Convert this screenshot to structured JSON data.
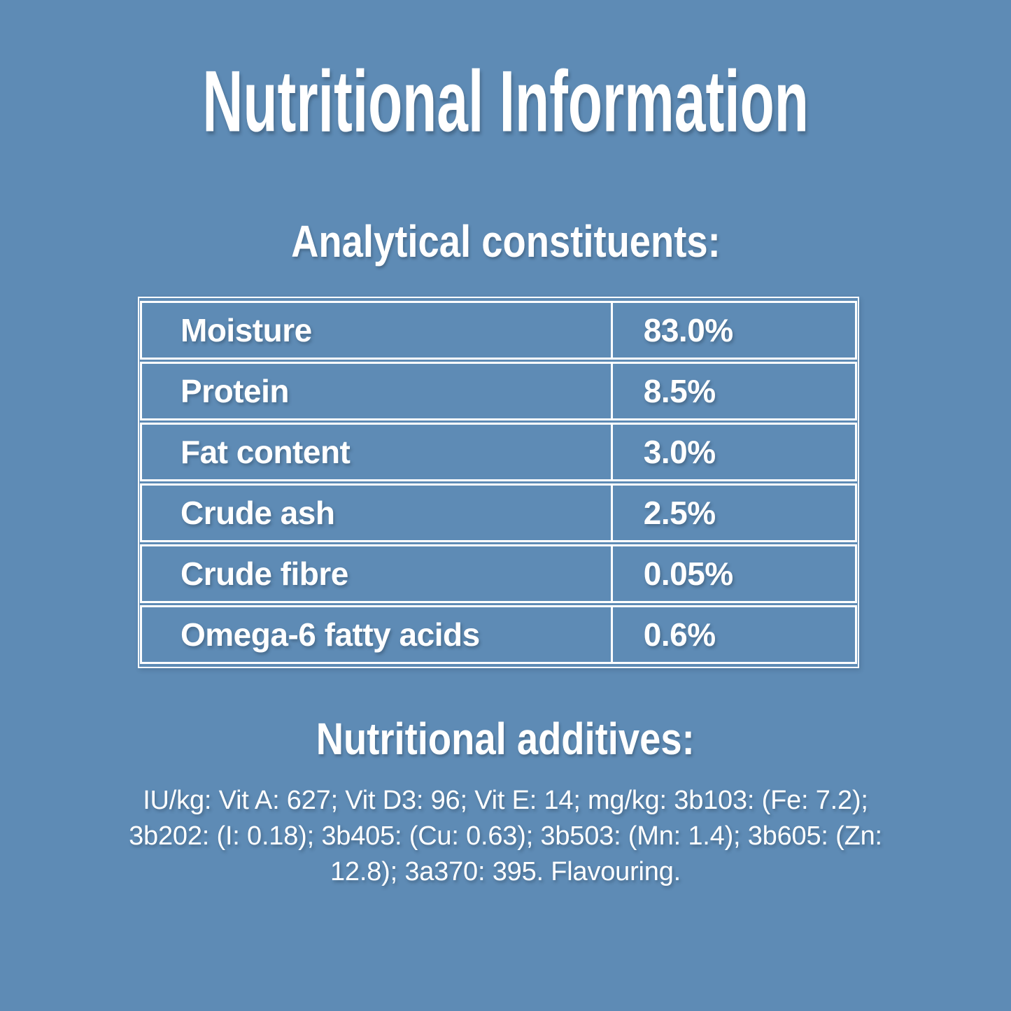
{
  "colors": {
    "background": "#5e8bb5",
    "text": "#ffffff",
    "table_line": "#ffffff"
  },
  "page": {
    "title": "Nutritional Information"
  },
  "analytical": {
    "heading": "Analytical constituents:",
    "rows": [
      {
        "label": "Moisture",
        "value": "83.0%"
      },
      {
        "label": "Protein",
        "value": "8.5%"
      },
      {
        "label": "Fat content",
        "value": "3.0%"
      },
      {
        "label": "Crude ash",
        "value": "2.5%"
      },
      {
        "label": "Crude fibre",
        "value": "0.05%"
      },
      {
        "label": "Omega-6 fatty acids",
        "value": "0.6%"
      }
    ]
  },
  "additives": {
    "heading": "Nutritional additives:",
    "text": "IU/kg: Vit A: 627; Vit D3: 96; Vit E: 14; mg/kg: 3b103: (Fe: 7.2); 3b202: (I: 0.18); 3b405: (Cu: 0.63); 3b503: (Mn: 1.4); 3b605: (Zn: 12.8); 3a370: 395. Flavouring."
  }
}
